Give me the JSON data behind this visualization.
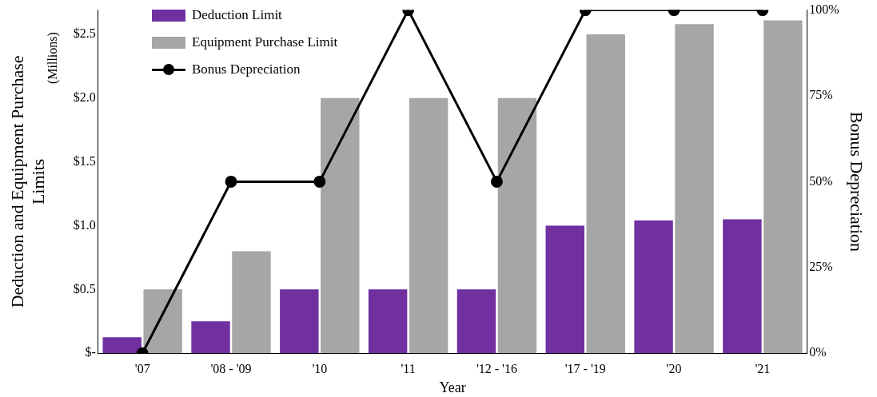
{
  "chart_data": {
    "type": "bar",
    "categories": [
      "'07",
      "'08 - '09",
      "'10",
      "'11",
      "'12 - '16",
      "'17 - '19",
      "'20",
      "'21"
    ],
    "series": [
      {
        "name": "Deduction Limit",
        "color": "#7030a0",
        "values": [
          0.125,
          0.25,
          0.5,
          0.5,
          0.5,
          1.0,
          1.04,
          1.05
        ]
      },
      {
        "name": "Equipment Purchase Limit",
        "color": "#a6a6a6",
        "values": [
          0.5,
          0.8,
          2.0,
          2.0,
          2.0,
          2.5,
          2.58,
          2.61
        ]
      },
      {
        "name": "Bonus Depreciation",
        "type": "line",
        "axis": "y2",
        "color": "#000000",
        "values": [
          0,
          50,
          50,
          100,
          50,
          100,
          100,
          100
        ]
      }
    ],
    "xlabel": "Year",
    "ylabel": "Deduction and Equipment Purchase Limits",
    "y2label": "Bonus Depreciation",
    "annotations": [
      "(Millions)"
    ],
    "ylim": [
      0,
      2.69
    ],
    "yticks": [
      {
        "value": 0,
        "label": "$-"
      },
      {
        "value": 0.5,
        "label": "$0.5"
      },
      {
        "value": 1.0,
        "label": "$1.0"
      },
      {
        "value": 1.5,
        "label": "$1.5"
      },
      {
        "value": 2.0,
        "label": "$2.0"
      },
      {
        "value": 2.5,
        "label": "$2.5"
      }
    ],
    "y2lim": [
      0,
      100
    ],
    "y2ticks": [
      {
        "value": 0,
        "label": "0%"
      },
      {
        "value": 25,
        "label": "25%"
      },
      {
        "value": 50,
        "label": "50%"
      },
      {
        "value": 75,
        "label": "75%"
      },
      {
        "value": 100,
        "label": "100%"
      }
    ],
    "grid": false,
    "legend": "top left",
    "marker": "circle",
    "line_style": "solid"
  }
}
